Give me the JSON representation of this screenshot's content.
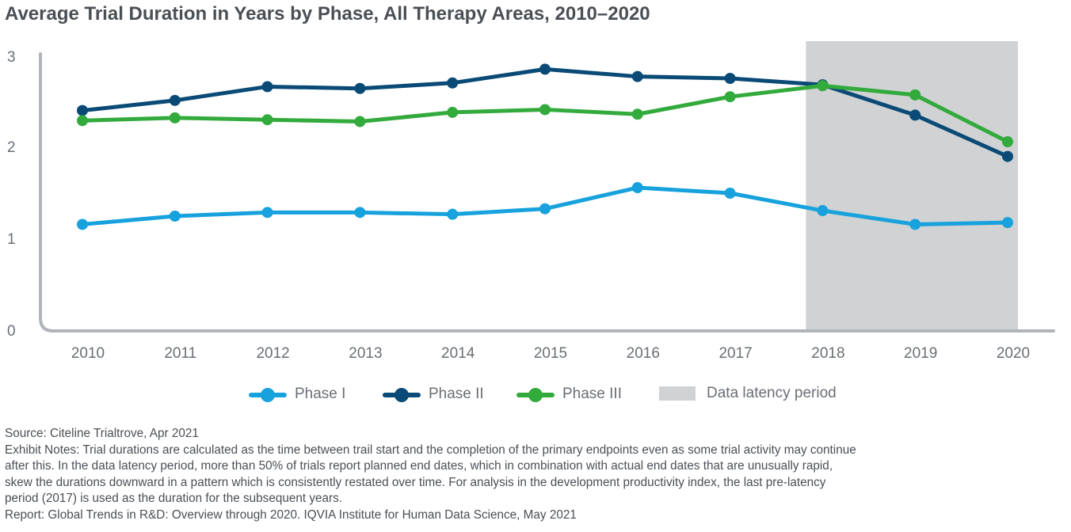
{
  "title": "Average Trial Duration in Years by Phase, All Therapy Areas, 2010–2020",
  "chart_data": {
    "type": "line",
    "title": "Average Trial Duration in Years by Phase, All Therapy Areas, 2010–2020",
    "xlabel": "",
    "ylabel": "",
    "x": [
      "2010",
      "2011",
      "2012",
      "2013",
      "2014",
      "2015",
      "2016",
      "2017",
      "2018",
      "2019",
      "2020"
    ],
    "ylim": [
      0,
      3
    ],
    "yticks": [
      "0",
      "1",
      "2",
      "3"
    ],
    "grid": false,
    "legend_position": "bottom",
    "shaded_region": {
      "label": "Data latency period",
      "from": "2018",
      "to": "2020",
      "color": "#d0d2d3"
    },
    "series": [
      {
        "name": "Phase I",
        "color": "#17a2dd",
        "values": [
          1.16,
          1.25,
          1.29,
          1.29,
          1.27,
          1.33,
          1.56,
          1.5,
          1.31,
          1.16,
          1.18
        ]
      },
      {
        "name": "Phase II",
        "color": "#0a4a76",
        "values": [
          2.4,
          2.51,
          2.66,
          2.64,
          2.7,
          2.85,
          2.77,
          2.75,
          2.68,
          2.35,
          1.9
        ]
      },
      {
        "name": "Phase III",
        "color": "#33aa3c",
        "values": [
          2.29,
          2.32,
          2.3,
          2.28,
          2.38,
          2.41,
          2.36,
          2.55,
          2.67,
          2.57,
          2.06
        ]
      }
    ]
  },
  "legend": [
    {
      "label": "Phase I",
      "color": "#17a2dd"
    },
    {
      "label": "Phase II",
      "color": "#0a4a76"
    },
    {
      "label": "Phase III",
      "color": "#33aa3c"
    },
    {
      "label": "Data latency period",
      "color": "#d0d2d3"
    }
  ],
  "notes": {
    "source": "Source: Citeline Trialtrove, Apr 2021",
    "exhibit_lines": [
      "Exhibit Notes: Trial durations are calculated as the time between trail start and the completion of the primary endpoints even as some trial activity may continue",
      "after this. In the data latency period, more than 50% of trials report planned end dates, which in combination with actual end dates that are unusually rapid,",
      "skew the durations downward in a pattern which is consistently restated over time. For analysis in the development productivity index, the last pre-latency",
      "period (2017) is used as the duration for the subsequent years."
    ],
    "report": "Report: Global Trends in R&D: Overview through 2020. IQVIA Institute for Human Data Science, May 2021"
  }
}
